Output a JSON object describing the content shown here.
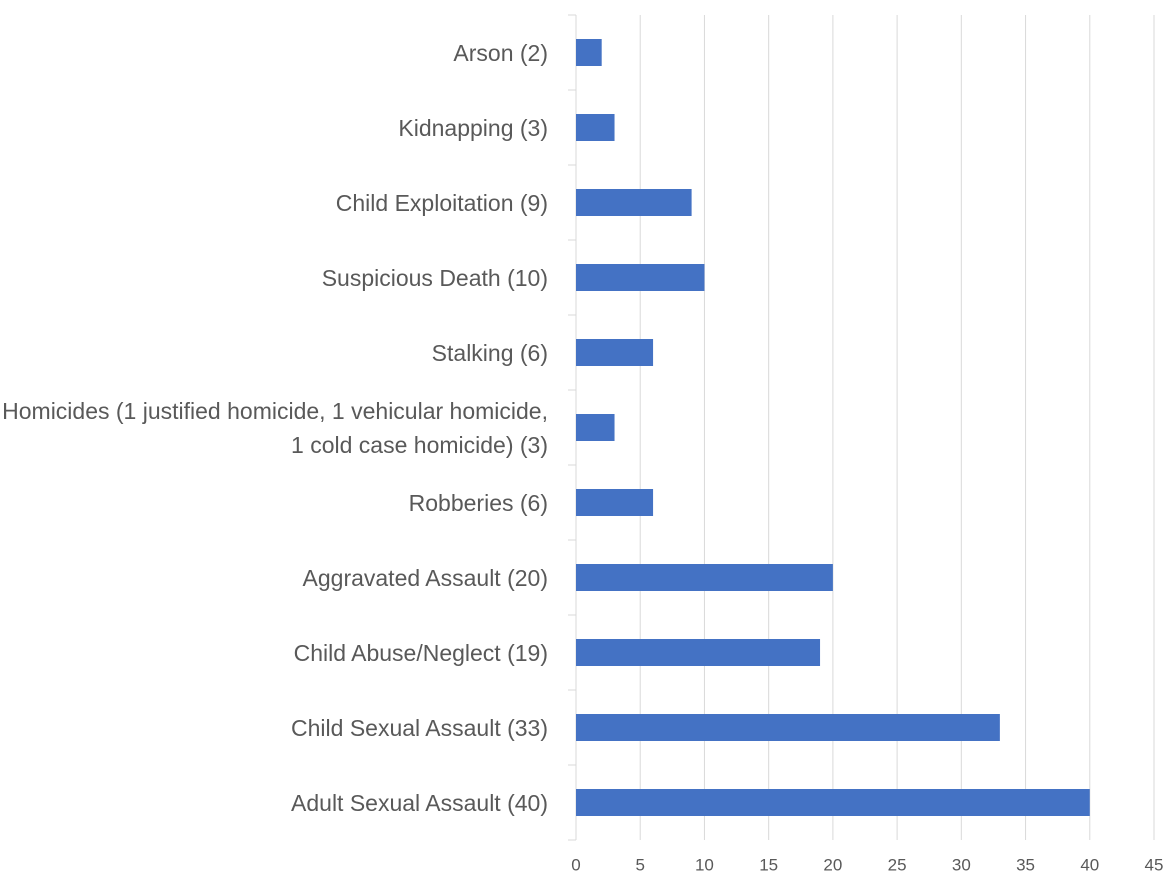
{
  "chart_data": {
    "type": "bar",
    "orientation": "horizontal",
    "categories": [
      "Arson (2)",
      "Kidnapping (3)",
      "Child Exploitation (9)",
      "Suspicious Death (10)",
      "Stalking (6)",
      "Homicides (1 justified homicide, 1 vehicular homicide, 1 cold case homicide) (3)",
      "Robberies (6)",
      "Aggravated Assault (20)",
      "Child Abuse/Neglect (19)",
      "Child Sexual Assault (33)",
      "Adult Sexual Assault (40)"
    ],
    "values": [
      2,
      3,
      9,
      10,
      6,
      3,
      6,
      20,
      19,
      33,
      40
    ],
    "color": "#4472c4",
    "xlim": [
      0,
      45
    ],
    "xticks": [
      0,
      5,
      10,
      15,
      20,
      25,
      30,
      35,
      40,
      45
    ],
    "grid": true
  }
}
